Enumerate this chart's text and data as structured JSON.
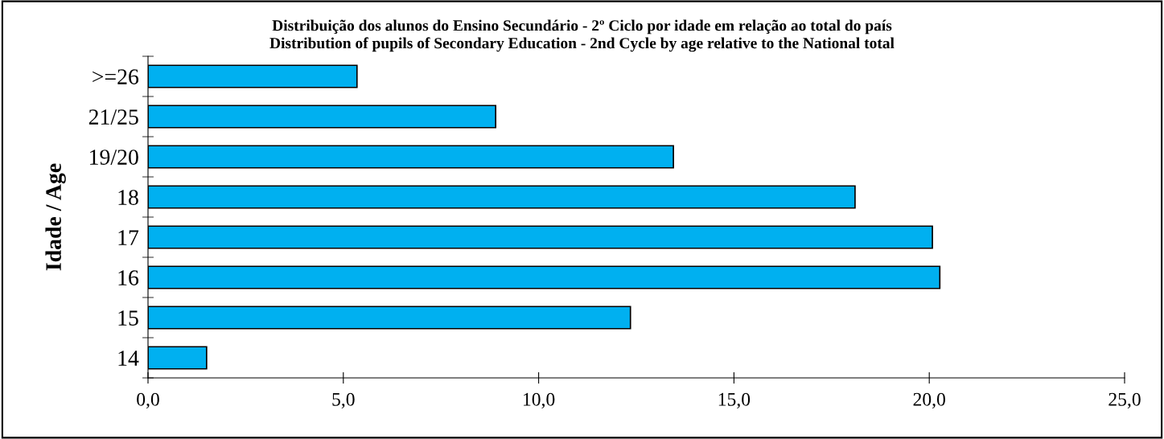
{
  "chart_data": {
    "type": "bar",
    "orientation": "horizontal",
    "title": "Distribuição dos alunos do Ensino Secundário - 2º Ciclo por idade em relação ao total do país\nDistribution of pupils of Secondary Education - 2nd Cycle by age relative to the National total",
    "ylabel": "Idade / Age",
    "categories": [
      ">=26",
      "21/25",
      "19/20",
      "18",
      "17",
      "16",
      "15",
      "14"
    ],
    "values": [
      5.35,
      8.9,
      13.45,
      18.1,
      20.08,
      20.27,
      12.35,
      1.5
    ],
    "color": "#00b0f0",
    "xlim": [
      0,
      25
    ],
    "xticks": [
      {
        "value": 0,
        "label": "0,0"
      },
      {
        "value": 5,
        "label": "5,0"
      },
      {
        "value": 10,
        "label": "10,0"
      },
      {
        "value": 15,
        "label": "15,0"
      },
      {
        "value": 20,
        "label": "20,0"
      },
      {
        "value": 25,
        "label": "25,0"
      }
    ],
    "grid": false,
    "legend": false
  }
}
